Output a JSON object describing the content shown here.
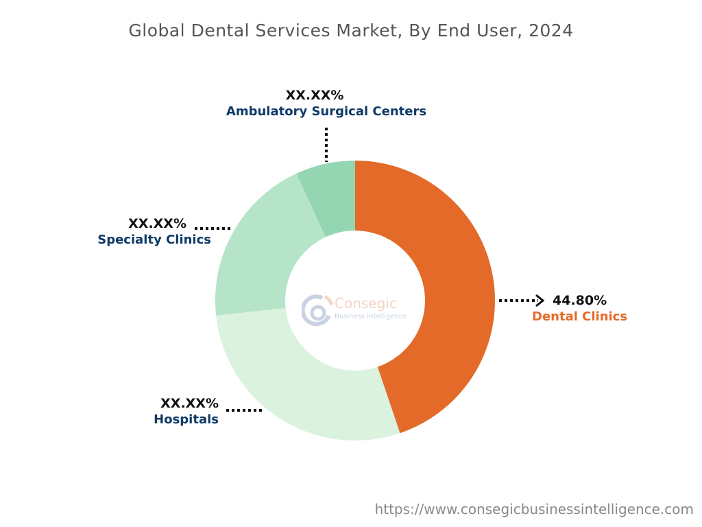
{
  "chart_data": {
    "type": "pie",
    "subtype": "donut",
    "title": "Global Dental Services Market, By End User, 2024",
    "categories": [
      "Dental Clinics",
      "Hospitals",
      "Specialty Clinics",
      "Ambulatory Surgical Centers"
    ],
    "values": [
      44.8,
      28.5,
      19.8,
      6.9
    ],
    "value_labels": [
      "44.80%",
      "XX.XX%",
      "XX.XX%",
      "XX.XX%"
    ],
    "colors": [
      "#e36a28",
      "#daf2de",
      "#b5e4c8",
      "#94d5b2"
    ],
    "start_angle": "top, clockwise"
  },
  "logo": {
    "brand": "Consegic",
    "tagline": "Business Intelligence"
  },
  "footer": {
    "url": "https://www.consegicbusinessintelligence.com"
  }
}
